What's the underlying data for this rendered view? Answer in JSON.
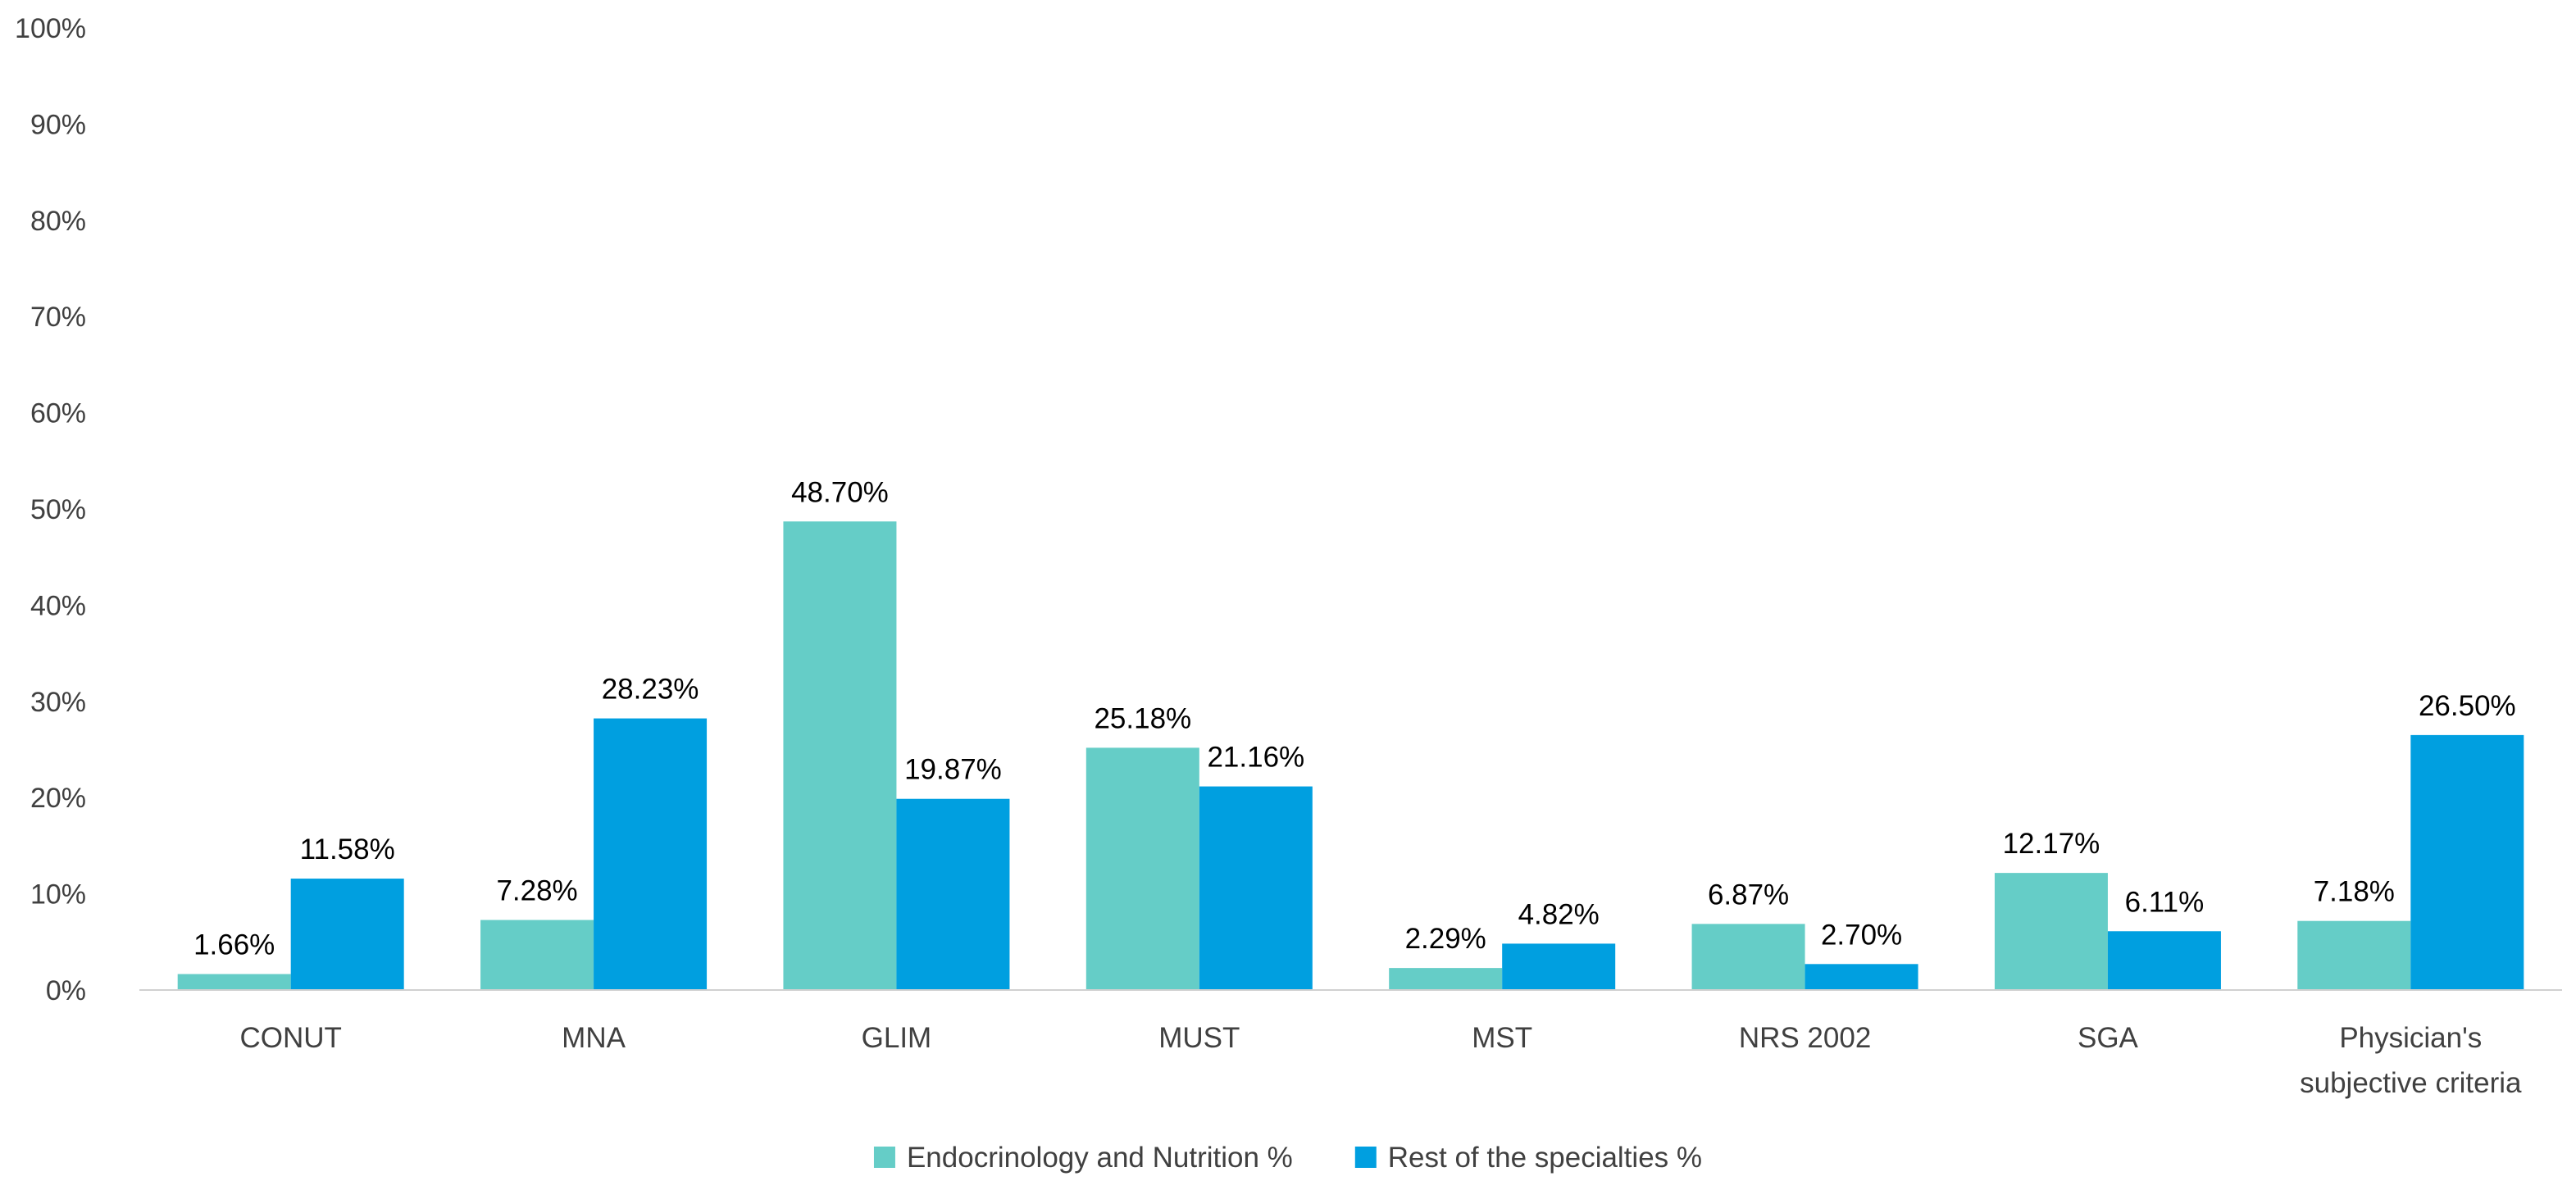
{
  "chart_data": {
    "type": "bar",
    "title": "",
    "xlabel": "",
    "ylabel": "",
    "ylim": [
      0,
      100
    ],
    "yticks": [
      "0%",
      "10%",
      "20%",
      "30%",
      "40%",
      "50%",
      "60%",
      "70%",
      "80%",
      "90%",
      "100%"
    ],
    "categories": [
      [
        "CONUT"
      ],
      [
        "MNA"
      ],
      [
        "GLIM"
      ],
      [
        "MUST"
      ],
      [
        "MST"
      ],
      [
        "NRS 2002"
      ],
      [
        "SGA"
      ],
      [
        "Physician's",
        "subjective criteria"
      ]
    ],
    "series": [
      {
        "name": "Endocrinology and Nutrition %",
        "color": "#65CDC7",
        "values": [
          1.66,
          7.28,
          48.7,
          25.18,
          2.29,
          6.87,
          12.17,
          7.18
        ],
        "labels": [
          "1.66%",
          "7.28%",
          "48.70%",
          "25.18%",
          "2.29%",
          "6.87%",
          "12.17%",
          "7.18%"
        ]
      },
      {
        "name": "Rest of the specialties %",
        "color": "#009FE0",
        "values": [
          11.58,
          28.23,
          19.87,
          21.16,
          4.82,
          2.7,
          6.11,
          26.5
        ],
        "labels": [
          "11.58%",
          "28.23%",
          "19.87%",
          "21.16%",
          "4.82%",
          "2.70%",
          "6.11%",
          "26.50%"
        ]
      }
    ],
    "grid": false,
    "legend_position": "bottom"
  }
}
